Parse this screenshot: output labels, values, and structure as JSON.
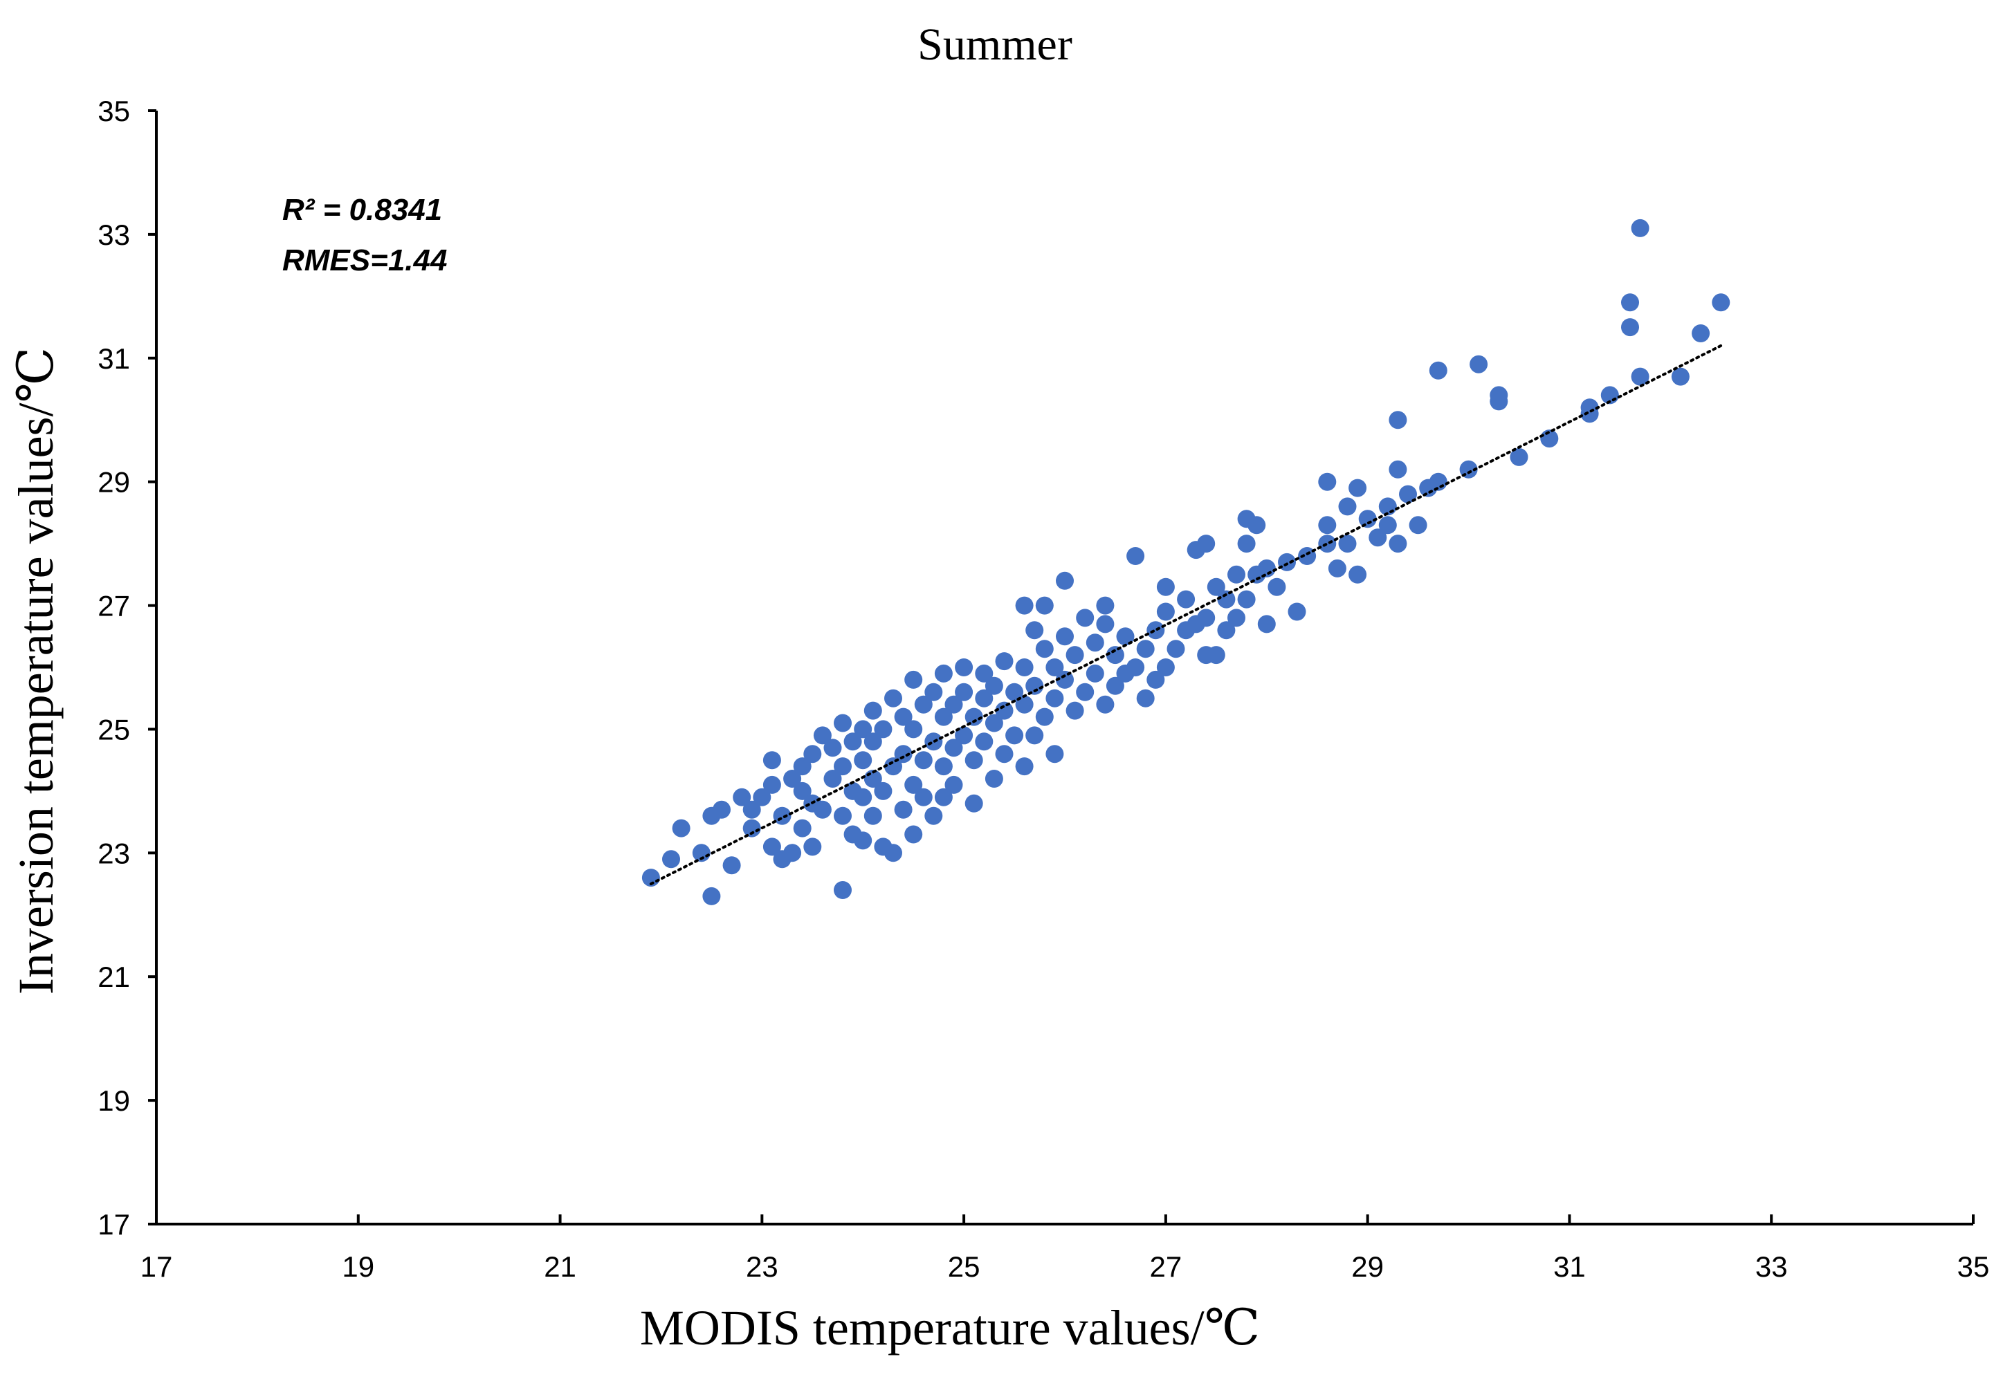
{
  "chart_data": {
    "type": "scatter",
    "title": "Summer",
    "xlabel": "MODIS temperature values/℃",
    "ylabel": "Inversion temperature values/℃",
    "xlim": [
      17,
      35
    ],
    "ylim": [
      17,
      35
    ],
    "xticks": [
      "17",
      "19",
      "21",
      "23",
      "25",
      "27",
      "29",
      "31",
      "33",
      "35"
    ],
    "yticks": [
      "17",
      "19",
      "21",
      "23",
      "25",
      "27",
      "29",
      "31",
      "33",
      "35"
    ],
    "annotations": [
      "R² = 0.8341",
      "RMES=1.44"
    ],
    "grid": false,
    "point_color": "#4472C4",
    "trendline": {
      "x": [
        21.9,
        32.5
      ],
      "y": [
        22.5,
        31.2
      ],
      "style": "dotted",
      "color": "#000000"
    },
    "series": [
      {
        "points": [
          [
            21.9,
            22.6
          ],
          [
            22.1,
            22.9
          ],
          [
            22.2,
            23.4
          ],
          [
            22.4,
            23.0
          ],
          [
            22.5,
            22.3
          ],
          [
            22.5,
            23.6
          ],
          [
            22.6,
            23.7
          ],
          [
            22.7,
            22.8
          ],
          [
            22.8,
            23.9
          ],
          [
            22.9,
            23.4
          ],
          [
            22.9,
            23.7
          ],
          [
            23.0,
            23.9
          ],
          [
            23.1,
            23.1
          ],
          [
            23.1,
            24.1
          ],
          [
            23.1,
            24.5
          ],
          [
            23.2,
            22.9
          ],
          [
            23.2,
            23.6
          ],
          [
            23.3,
            23.0
          ],
          [
            23.3,
            24.2
          ],
          [
            23.4,
            23.4
          ],
          [
            23.4,
            24.0
          ],
          [
            23.4,
            24.4
          ],
          [
            23.5,
            23.1
          ],
          [
            23.5,
            23.8
          ],
          [
            23.5,
            24.6
          ],
          [
            23.6,
            23.7
          ],
          [
            23.6,
            24.9
          ],
          [
            23.7,
            24.2
          ],
          [
            23.7,
            24.7
          ],
          [
            23.8,
            22.4
          ],
          [
            23.8,
            23.6
          ],
          [
            23.8,
            24.4
          ],
          [
            23.8,
            25.1
          ],
          [
            23.9,
            23.3
          ],
          [
            23.9,
            24.0
          ],
          [
            23.9,
            24.8
          ],
          [
            24.0,
            23.2
          ],
          [
            24.0,
            23.9
          ],
          [
            24.0,
            24.5
          ],
          [
            24.0,
            25.0
          ],
          [
            24.1,
            23.6
          ],
          [
            24.1,
            24.2
          ],
          [
            24.1,
            24.8
          ],
          [
            24.1,
            25.3
          ],
          [
            24.2,
            23.1
          ],
          [
            24.2,
            24.0
          ],
          [
            24.2,
            25.0
          ],
          [
            24.3,
            23.0
          ],
          [
            24.3,
            24.4
          ],
          [
            24.3,
            25.5
          ],
          [
            24.4,
            23.7
          ],
          [
            24.4,
            24.6
          ],
          [
            24.4,
            25.2
          ],
          [
            24.5,
            23.3
          ],
          [
            24.5,
            24.1
          ],
          [
            24.5,
            25.0
          ],
          [
            24.5,
            25.8
          ],
          [
            24.6,
            23.9
          ],
          [
            24.6,
            24.5
          ],
          [
            24.6,
            25.4
          ],
          [
            24.7,
            23.6
          ],
          [
            24.7,
            24.8
          ],
          [
            24.7,
            25.6
          ],
          [
            24.8,
            23.9
          ],
          [
            24.8,
            24.4
          ],
          [
            24.8,
            25.2
          ],
          [
            24.8,
            25.9
          ],
          [
            24.9,
            24.1
          ],
          [
            24.9,
            24.7
          ],
          [
            24.9,
            25.4
          ],
          [
            25.0,
            24.9
          ],
          [
            25.0,
            25.6
          ],
          [
            25.0,
            26.0
          ],
          [
            25.1,
            23.8
          ],
          [
            25.1,
            24.5
          ],
          [
            25.1,
            25.2
          ],
          [
            25.2,
            24.8
          ],
          [
            25.2,
            25.5
          ],
          [
            25.2,
            25.9
          ],
          [
            25.3,
            24.2
          ],
          [
            25.3,
            25.1
          ],
          [
            25.3,
            25.7
          ],
          [
            25.4,
            24.6
          ],
          [
            25.4,
            25.3
          ],
          [
            25.4,
            26.1
          ],
          [
            25.5,
            24.9
          ],
          [
            25.5,
            25.6
          ],
          [
            25.6,
            24.4
          ],
          [
            25.6,
            25.4
          ],
          [
            25.6,
            26.0
          ],
          [
            25.6,
            27.0
          ],
          [
            25.7,
            24.9
          ],
          [
            25.7,
            25.7
          ],
          [
            25.7,
            26.6
          ],
          [
            25.8,
            25.2
          ],
          [
            25.8,
            26.3
          ],
          [
            25.8,
            27.0
          ],
          [
            25.9,
            24.6
          ],
          [
            25.9,
            25.5
          ],
          [
            25.9,
            26.0
          ],
          [
            26.0,
            25.8
          ],
          [
            26.0,
            26.5
          ],
          [
            26.0,
            27.4
          ],
          [
            26.1,
            25.3
          ],
          [
            26.1,
            26.2
          ],
          [
            26.2,
            25.6
          ],
          [
            26.2,
            26.8
          ],
          [
            26.3,
            25.9
          ],
          [
            26.3,
            26.4
          ],
          [
            26.4,
            25.4
          ],
          [
            26.4,
            26.7
          ],
          [
            26.4,
            27.0
          ],
          [
            26.5,
            25.7
          ],
          [
            26.5,
            26.2
          ],
          [
            26.6,
            25.9
          ],
          [
            26.6,
            26.5
          ],
          [
            26.7,
            26.0
          ],
          [
            26.7,
            27.8
          ],
          [
            26.8,
            25.5
          ],
          [
            26.8,
            26.3
          ],
          [
            26.9,
            25.8
          ],
          [
            26.9,
            26.6
          ],
          [
            27.0,
            26.0
          ],
          [
            27.0,
            26.9
          ],
          [
            27.0,
            27.3
          ],
          [
            27.1,
            26.3
          ],
          [
            27.2,
            26.6
          ],
          [
            27.2,
            27.1
          ],
          [
            27.3,
            26.7
          ],
          [
            27.3,
            27.9
          ],
          [
            27.4,
            26.2
          ],
          [
            27.4,
            26.8
          ],
          [
            27.4,
            28.0
          ],
          [
            27.5,
            26.2
          ],
          [
            27.5,
            27.3
          ],
          [
            27.6,
            26.6
          ],
          [
            27.6,
            27.1
          ],
          [
            27.7,
            26.8
          ],
          [
            27.7,
            27.5
          ],
          [
            27.8,
            27.1
          ],
          [
            27.8,
            28.0
          ],
          [
            27.8,
            28.4
          ],
          [
            27.9,
            27.5
          ],
          [
            27.9,
            28.3
          ],
          [
            28.0,
            26.7
          ],
          [
            28.0,
            27.6
          ],
          [
            28.1,
            27.3
          ],
          [
            28.2,
            27.7
          ],
          [
            28.3,
            26.9
          ],
          [
            28.4,
            27.8
          ],
          [
            28.6,
            28.0
          ],
          [
            28.6,
            28.3
          ],
          [
            28.6,
            29.0
          ],
          [
            28.7,
            27.6
          ],
          [
            28.8,
            28.0
          ],
          [
            28.8,
            28.6
          ],
          [
            28.9,
            27.5
          ],
          [
            28.9,
            28.9
          ],
          [
            29.0,
            28.4
          ],
          [
            29.1,
            28.1
          ],
          [
            29.2,
            28.3
          ],
          [
            29.2,
            28.6
          ],
          [
            29.3,
            28.0
          ],
          [
            29.3,
            29.2
          ],
          [
            29.3,
            30.0
          ],
          [
            29.4,
            28.8
          ],
          [
            29.5,
            28.3
          ],
          [
            29.6,
            28.9
          ],
          [
            29.7,
            29.0
          ],
          [
            29.7,
            30.8
          ],
          [
            30.0,
            29.2
          ],
          [
            30.1,
            30.9
          ],
          [
            30.3,
            30.3
          ],
          [
            30.3,
            30.4
          ],
          [
            30.5,
            29.4
          ],
          [
            30.8,
            29.7
          ],
          [
            31.2,
            30.1
          ],
          [
            31.2,
            30.2
          ],
          [
            31.4,
            30.4
          ],
          [
            31.6,
            31.5
          ],
          [
            31.6,
            31.9
          ],
          [
            31.7,
            30.7
          ],
          [
            31.7,
            33.1
          ],
          [
            32.1,
            30.7
          ],
          [
            32.3,
            31.4
          ],
          [
            32.5,
            31.9
          ]
        ]
      }
    ]
  }
}
